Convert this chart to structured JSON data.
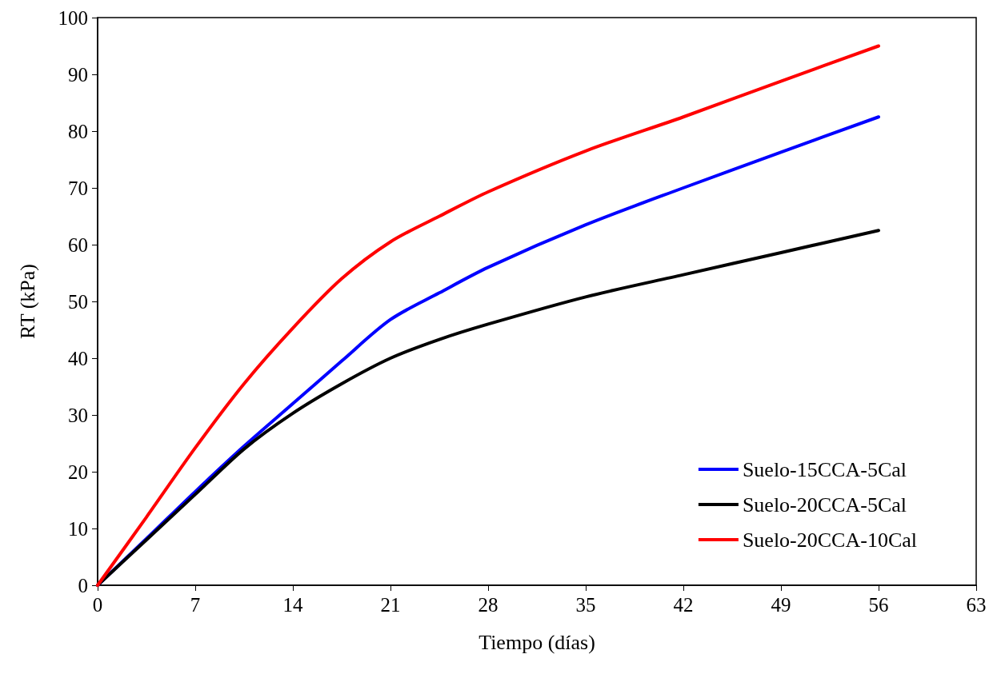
{
  "chart_data": {
    "type": "line",
    "xlabel": "Tiempo (días)",
    "ylabel": "RT (kPa)",
    "x": [
      0,
      3.5,
      7,
      10.5,
      14,
      17.5,
      21,
      24.5,
      28,
      35,
      42,
      49,
      56
    ],
    "series": [
      {
        "name": "Suelo-15CCA-5Cal",
        "color": "#0000ff",
        "values": [
          0,
          8.2,
          16.5,
          24.5,
          32,
          39.5,
          46.8,
          51.5,
          56,
          63.5,
          70,
          76.3,
          82.5
        ]
      },
      {
        "name": "Suelo-20CCA-5Cal",
        "color": "#000000",
        "values": [
          0,
          8,
          16,
          24,
          30.3,
          35.5,
          40,
          43.3,
          46,
          50.8,
          54.7,
          58.6,
          62.5
        ]
      },
      {
        "name": "Suelo-20CCA-10Cal",
        "color": "#ff0000",
        "values": [
          0,
          12,
          24.2,
          35.5,
          45.3,
          54,
          60.5,
          65,
          69.3,
          76.5,
          82.5,
          88.8,
          95
        ]
      }
    ],
    "xlim": [
      0,
      63
    ],
    "xticks": [
      0,
      7,
      14,
      21,
      28,
      35,
      42,
      49,
      56,
      63
    ],
    "ylim": [
      0,
      100
    ],
    "yticks": [
      0,
      10,
      20,
      30,
      40,
      50,
      60,
      70,
      80,
      90,
      100
    ],
    "grid": false,
    "legend": "bottom right",
    "marker": "none",
    "line_style": "solid"
  }
}
